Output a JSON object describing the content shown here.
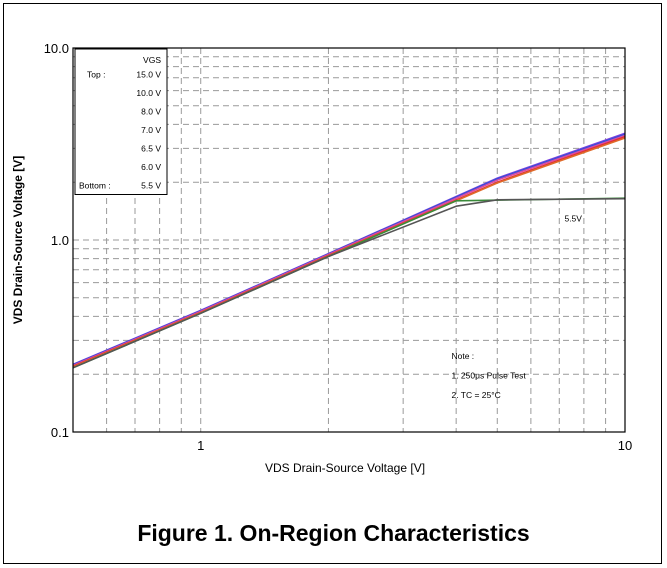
{
  "caption": "Figure 1. On-Region Characteristics",
  "chart_data": {
    "type": "line",
    "title": "",
    "xlabel": "VDS Drain-Source Voltage [V]",
    "ylabel": "VDS Drain-Source Voltage [V]",
    "x_scale": "log",
    "y_scale": "log",
    "xlim": [
      0.5,
      10
    ],
    "ylim": [
      0.1,
      10
    ],
    "grid": true,
    "x_ticks": [
      "1",
      "10"
    ],
    "y_ticks": [
      "0.1",
      "1.0",
      "10.0"
    ],
    "legend": {
      "placement": "top-left",
      "title": "VGS",
      "rows": [
        {
          "prefix": "Top :",
          "value": "15.0 V"
        },
        {
          "prefix": "",
          "value": "10.0 V"
        },
        {
          "prefix": "",
          "value": "8.0 V"
        },
        {
          "prefix": "",
          "value": "7.0 V"
        },
        {
          "prefix": "",
          "value": "6.5 V"
        },
        {
          "prefix": "",
          "value": "6.0 V"
        },
        {
          "prefix": "Bottom :",
          "value": "5.5 V"
        }
      ]
    },
    "series": [
      {
        "name": "15.0 V",
        "color": "#7b3fe0",
        "x": [
          0.5,
          1,
          2,
          5,
          10
        ],
        "y": [
          0.225,
          0.43,
          0.85,
          2.1,
          3.6
        ]
      },
      {
        "name": "10.0 V",
        "color": "#2f52d8",
        "x": [
          0.5,
          1,
          2,
          5,
          10
        ],
        "y": [
          0.224,
          0.428,
          0.845,
          2.08,
          3.55
        ]
      },
      {
        "name": "8.0 V",
        "color": "#d94aa6",
        "x": [
          0.5,
          1,
          2,
          5,
          10
        ],
        "y": [
          0.222,
          0.425,
          0.84,
          2.05,
          3.5
        ]
      },
      {
        "name": "7.0 V",
        "color": "#e03030",
        "x": [
          0.5,
          1,
          2,
          5,
          10
        ],
        "y": [
          0.22,
          0.42,
          0.83,
          2.0,
          3.45
        ]
      },
      {
        "name": "6.5 V",
        "color": "#e06a2a",
        "x": [
          0.5,
          1,
          2,
          5,
          10
        ],
        "y": [
          0.218,
          0.418,
          0.825,
          1.98,
          3.4
        ]
      },
      {
        "name": "6.0 V",
        "color": "#3a8a3a",
        "x": [
          0.5,
          1,
          2,
          4,
          10
        ],
        "y": [
          0.216,
          0.415,
          0.82,
          1.6,
          1.65
        ]
      },
      {
        "name": "5.5V",
        "color": "#555555",
        "x": [
          0.5,
          1,
          2,
          4,
          5,
          10
        ],
        "y": [
          0.216,
          0.415,
          0.82,
          1.5,
          1.62,
          1.64
        ]
      }
    ],
    "annotations": [
      {
        "text": "5.5V",
        "x": 7.2,
        "y": 1.25
      },
      {
        "text": "Note :",
        "x": 3.9,
        "y": 0.24
      },
      {
        "text": "1. 250μs Pulse Test",
        "x": 3.9,
        "y": 0.19
      },
      {
        "text": "2. TC = 25°C",
        "x": 3.9,
        "y": 0.15
      }
    ]
  }
}
